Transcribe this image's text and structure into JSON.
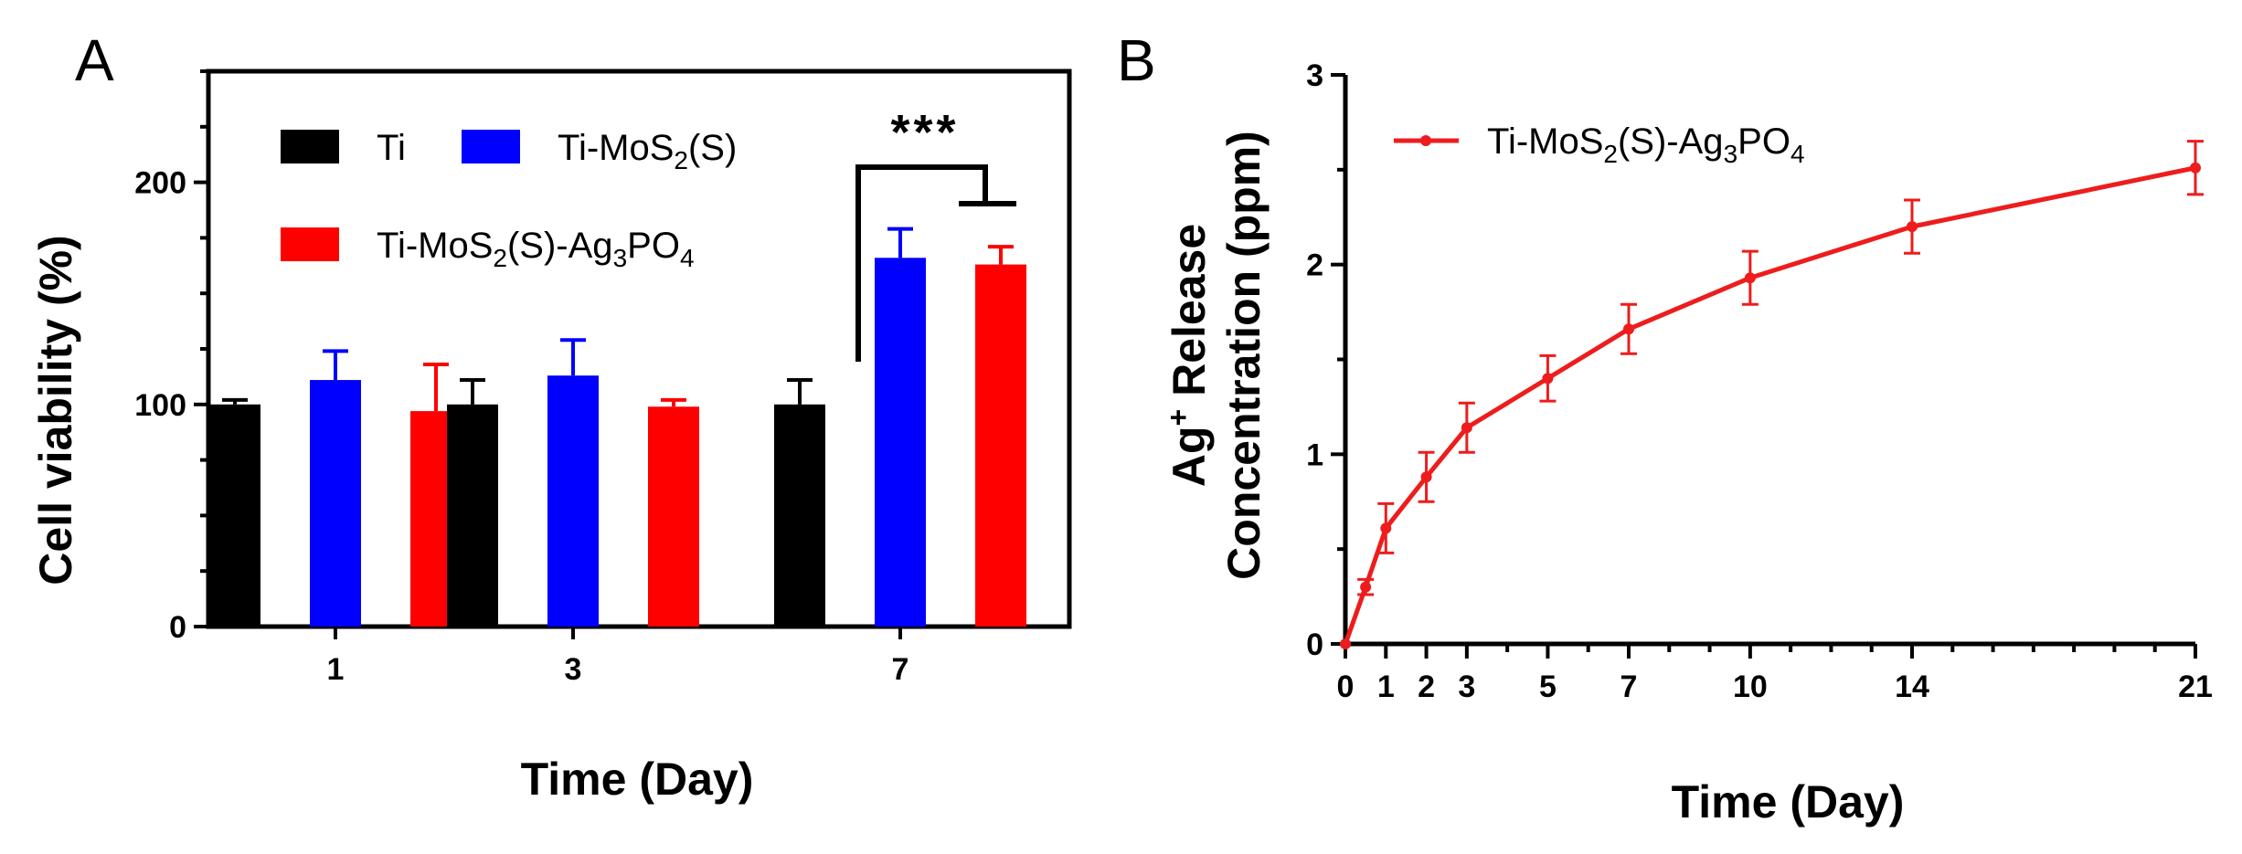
{
  "colors": {
    "Ti": "#000000",
    "Ti-MoS2(S)": "#0000ff",
    "Ti-MoS2(S)-Ag3PO4": "#ff0000",
    "release_line": "#ee1c1c"
  },
  "chart_data": [
    {
      "panel_label": "A",
      "type": "bar",
      "xlabel": "Time (Day)",
      "ylabel": "Cell viability (%)",
      "ylim": [
        0,
        250
      ],
      "yticks": [
        0,
        100,
        200
      ],
      "categories": [
        "1",
        "3",
        "7"
      ],
      "series": [
        {
          "name": "Ti",
          "values": [
            100,
            100,
            100
          ],
          "errors": [
            2,
            11,
            11
          ]
        },
        {
          "name": "Ti-MoS2(S)",
          "values": [
            111,
            113,
            166
          ],
          "errors": [
            13,
            16,
            13
          ]
        },
        {
          "name": "Ti-MoS2(S)-Ag3PO4",
          "values": [
            97,
            99,
            163
          ],
          "errors": [
            21,
            3,
            8
          ]
        }
      ],
      "legend": [
        {
          "key": "Ti",
          "label": "Ti"
        },
        {
          "key": "Ti-MoS2(S)",
          "label": "Ti-MoS",
          "sub": "2",
          "tail": "(S)"
        },
        {
          "key": "Ti-MoS2(S)-Ag3PO4",
          "label": "Ti-MoS",
          "sub": "2",
          "mid": "(S)-Ag",
          "sub2": "3",
          "mid2": "PO",
          "sub3": "4"
        }
      ],
      "legend_position": "top-left",
      "annotation": {
        "text": "***",
        "category": "7",
        "compare": [
          "Ti",
          "Ti-MoS2(S) & Ti-MoS2(S)-Ag3PO4"
        ]
      }
    },
    {
      "panel_label": "B",
      "type": "line",
      "xlabel": "Time (Day)",
      "ylabel_line1": "Ag",
      "ylabel_sup": "+",
      "ylabel_line1_tail": " Release",
      "ylabel_line2": "Concentration (ppm)",
      "xlim": [
        0,
        21
      ],
      "ylim": [
        0,
        3
      ],
      "xticks": [
        0,
        1,
        2,
        3,
        5,
        7,
        10,
        14,
        21
      ],
      "xticks_minor": [
        4,
        6,
        8,
        9,
        11,
        12,
        13,
        15,
        16,
        17,
        18,
        19,
        20
      ],
      "yticks": [
        0,
        1,
        2,
        3
      ],
      "series": [
        {
          "name": "Ti-MoS2(S)-Ag3PO4",
          "label": "Ti-MoS",
          "sub": "2",
          "mid": "(S)-Ag",
          "sub2": "3",
          "mid2": "PO",
          "sub3": "4",
          "x": [
            0,
            0.5,
            1,
            2,
            3,
            5,
            7,
            10,
            14,
            21
          ],
          "y": [
            0,
            0.3,
            0.61,
            0.88,
            1.14,
            1.4,
            1.66,
            1.93,
            2.2,
            2.51
          ],
          "errors": [
            0,
            0.04,
            0.13,
            0.13,
            0.13,
            0.12,
            0.13,
            0.14,
            0.14,
            0.14
          ]
        }
      ],
      "legend_position": "top-left"
    }
  ]
}
